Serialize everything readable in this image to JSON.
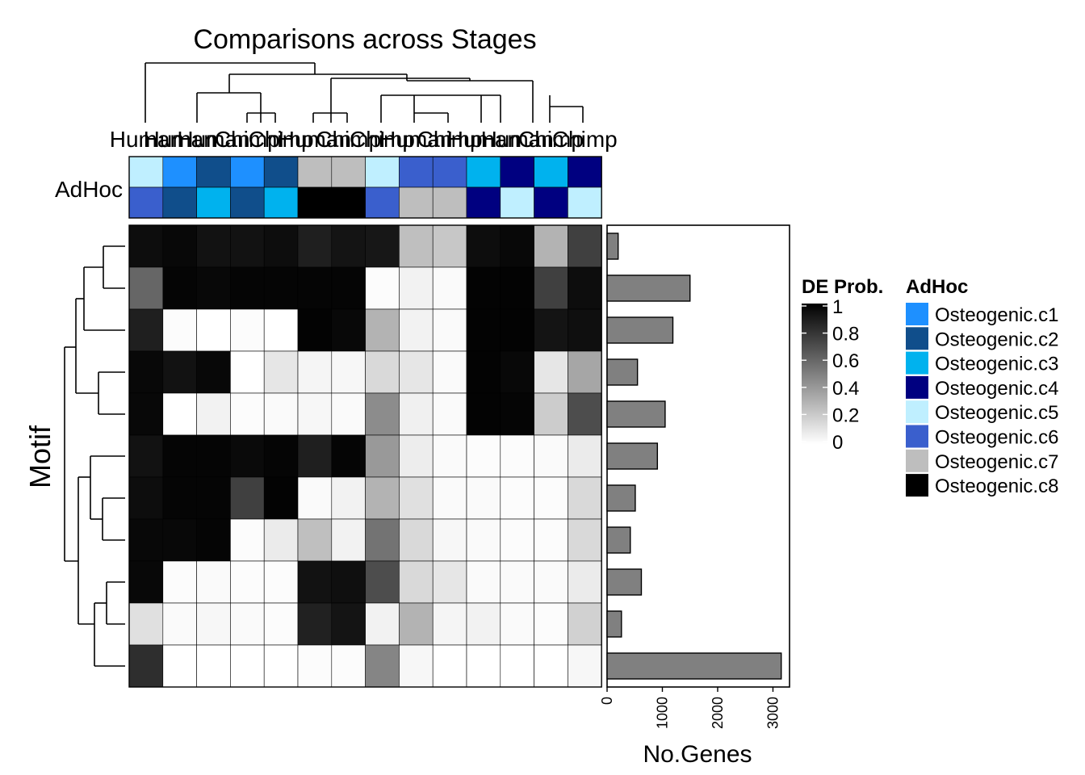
{
  "chart_data": {
    "type": "heatmap",
    "title": "Comparisons across Stages",
    "row_axis_label": "Motif",
    "columns": [
      "Human",
      "Human",
      "Human",
      "Chimp",
      "Chimp",
      "Human",
      "Chimp",
      "Chimp",
      "Human",
      "Chimp",
      "Human",
      "Human",
      "Chimp",
      "Chimp"
    ],
    "column_label_display": [
      "Hu",
      "man",
      "Hu",
      "man",
      "Hu",
      "man",
      "Ch",
      "imp",
      "Ch",
      "imp",
      "Hu",
      "man",
      "Ch",
      "imp",
      "Ch",
      "imp",
      "Hu",
      "man",
      "Ch",
      "imp",
      "Hu",
      "man",
      "Ch",
      "imp",
      "Ch",
      "imp"
    ],
    "annotation": {
      "name": "AdHoc",
      "row1": [
        "Osteogenic.c5",
        "Osteogenic.c1",
        "Osteogenic.c2",
        "Osteogenic.c1",
        "Osteogenic.c2",
        "Osteogenic.c7",
        "Osteogenic.c7",
        "Osteogenic.c5",
        "Osteogenic.c6",
        "Osteogenic.c6",
        "Osteogenic.c3",
        "Osteogenic.c4",
        "Osteogenic.c3",
        "Osteogenic.c4"
      ],
      "row2": [
        "Osteogenic.c6",
        "Osteogenic.c2",
        "Osteogenic.c3",
        "Osteogenic.c2",
        "Osteogenic.c3",
        "Osteogenic.c8",
        "Osteogenic.c8",
        "Osteogenic.c6",
        "Osteogenic.c7",
        "Osteogenic.c7",
        "Osteogenic.c4",
        "Osteogenic.c5",
        "Osteogenic.c4",
        "Osteogenic.c5"
      ]
    },
    "values": [
      [
        0.95,
        0.97,
        0.93,
        0.93,
        0.95,
        0.88,
        0.92,
        0.91,
        0.25,
        0.22,
        0.95,
        0.97,
        0.3,
        0.75
      ],
      [
        0.6,
        0.98,
        0.97,
        0.98,
        0.98,
        0.98,
        0.98,
        0.01,
        0.05,
        0.02,
        0.99,
        0.99,
        0.75,
        0.95
      ],
      [
        0.88,
        0.01,
        0.0,
        0.01,
        0.0,
        0.99,
        0.97,
        0.3,
        0.05,
        0.02,
        0.99,
        0.99,
        0.92,
        0.94
      ],
      [
        0.97,
        0.93,
        0.97,
        0.0,
        0.1,
        0.04,
        0.03,
        0.15,
        0.1,
        0.02,
        0.99,
        0.97,
        0.1,
        0.35
      ],
      [
        0.97,
        0.0,
        0.05,
        0.01,
        0.02,
        0.03,
        0.02,
        0.45,
        0.06,
        0.02,
        0.99,
        0.98,
        0.2,
        0.7
      ],
      [
        0.93,
        0.98,
        0.98,
        0.96,
        0.98,
        0.88,
        0.98,
        0.4,
        0.07,
        0.02,
        0.01,
        0.01,
        0.02,
        0.08
      ],
      [
        0.95,
        0.98,
        0.98,
        0.75,
        0.99,
        0.02,
        0.05,
        0.3,
        0.12,
        0.02,
        0.02,
        0.01,
        0.01,
        0.15
      ],
      [
        0.97,
        0.97,
        0.98,
        0.01,
        0.08,
        0.25,
        0.05,
        0.55,
        0.15,
        0.03,
        0.02,
        0.01,
        0.01,
        0.15
      ],
      [
        0.97,
        0.01,
        0.02,
        0.01,
        0.01,
        0.93,
        0.94,
        0.7,
        0.15,
        0.1,
        0.02,
        0.02,
        0.02,
        0.08
      ],
      [
        0.12,
        0.02,
        0.03,
        0.02,
        0.01,
        0.87,
        0.92,
        0.05,
        0.3,
        0.04,
        0.05,
        0.02,
        0.01,
        0.18
      ],
      [
        0.82,
        0.0,
        0.0,
        0.0,
        0.0,
        0.01,
        0.01,
        0.48,
        0.03,
        0.0,
        0.0,
        0.0,
        0.0,
        0.03
      ]
    ],
    "bar": {
      "xlabel": "No.Genes",
      "values": [
        200,
        1500,
        1190,
        550,
        1050,
        910,
        510,
        420,
        620,
        260,
        3150
      ],
      "xlim": [
        0,
        3300
      ],
      "ticks": [
        0,
        1000,
        2000,
        3000
      ]
    },
    "legend_de": {
      "title": "DE Prob.",
      "ticks": [
        "1",
        "0.8",
        "0.6",
        "0.4",
        "0.2",
        "0"
      ]
    },
    "legend_adhoc": {
      "title": "AdHoc",
      "items": [
        {
          "label": "Osteogenic.c1",
          "color": "#1E90FF"
        },
        {
          "label": "Osteogenic.c2",
          "color": "#104E8B"
        },
        {
          "label": "Osteogenic.c3",
          "color": "#00B2EE"
        },
        {
          "label": "Osteogenic.c4",
          "color": "#000080"
        },
        {
          "label": "Osteogenic.c5",
          "color": "#BFEFFF"
        },
        {
          "label": "Osteogenic.c6",
          "color": "#3A5FCD"
        },
        {
          "label": "Osteogenic.c7",
          "color": "#BEBEBE"
        },
        {
          "label": "Osteogenic.c8",
          "color": "#000000"
        }
      ]
    },
    "legend": "right",
    "grid": false
  }
}
